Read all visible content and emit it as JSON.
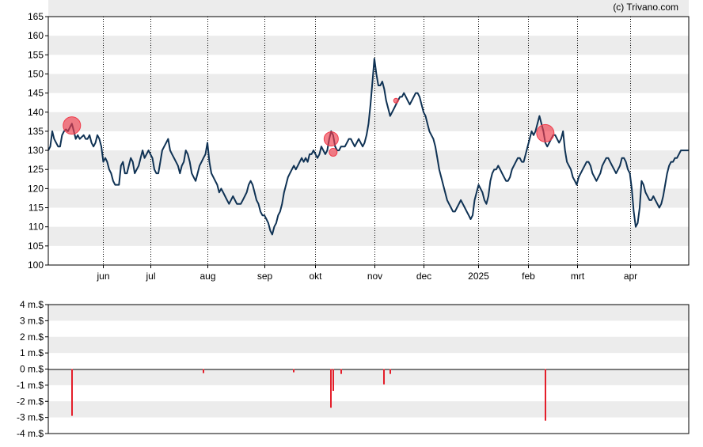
{
  "credit": "(c) Trivano.com",
  "colors": {
    "price_line": "#0f3254",
    "band": "#ececec",
    "marker": "#f03c4b",
    "insider_bar": "#e41e2a"
  },
  "chart_data": [
    {
      "type": "line",
      "name": "price",
      "ylim": [
        100,
        165
      ],
      "yticks": [
        "100",
        "105",
        "110",
        "115",
        "120",
        "125",
        "130",
        "135",
        "140",
        "145",
        "150",
        "155",
        "160",
        "165"
      ],
      "grid": "alternating horizontal bands, dotted vertical month lines",
      "x_domain": [
        0,
        326
      ],
      "month_ticks": [
        {
          "label": "jun",
          "x": 28
        },
        {
          "label": "jul",
          "x": 52
        },
        {
          "label": "aug",
          "x": 81
        },
        {
          "label": "sep",
          "x": 110
        },
        {
          "label": "okt",
          "x": 136
        },
        {
          "label": "nov",
          "x": 166
        },
        {
          "label": "dec",
          "x": 191
        },
        {
          "label": "2025",
          "x": 219
        },
        {
          "label": "feb",
          "x": 244
        },
        {
          "label": "mrt",
          "x": 269
        },
        {
          "label": "apr",
          "x": 296
        }
      ],
      "series_points": [
        [
          0,
          130
        ],
        [
          1,
          131
        ],
        [
          2,
          135
        ],
        [
          3,
          133
        ],
        [
          4,
          132
        ],
        [
          5,
          131
        ],
        [
          6,
          131
        ],
        [
          7,
          134
        ],
        [
          8,
          135
        ],
        [
          9,
          135.5
        ],
        [
          10,
          135
        ],
        [
          11,
          136
        ],
        [
          12,
          137
        ],
        [
          13,
          135
        ],
        [
          14,
          133
        ],
        [
          15,
          134
        ],
        [
          16,
          133
        ],
        [
          17,
          133.5
        ],
        [
          18,
          134
        ],
        [
          19,
          133
        ],
        [
          20,
          133
        ],
        [
          21,
          134
        ],
        [
          22,
          132
        ],
        [
          23,
          131
        ],
        [
          24,
          132
        ],
        [
          25,
          134
        ],
        [
          26,
          133
        ],
        [
          27,
          131
        ],
        [
          28,
          127
        ],
        [
          29,
          128
        ],
        [
          30,
          127
        ],
        [
          31,
          125
        ],
        [
          32,
          124
        ],
        [
          33,
          122
        ],
        [
          34,
          121
        ],
        [
          35,
          121
        ],
        [
          36,
          121
        ],
        [
          37,
          126
        ],
        [
          38,
          127
        ],
        [
          39,
          124
        ],
        [
          40,
          124
        ],
        [
          41,
          126
        ],
        [
          42,
          128
        ],
        [
          43,
          127
        ],
        [
          44,
          124
        ],
        [
          45,
          125
        ],
        [
          46,
          126
        ],
        [
          47,
          128
        ],
        [
          48,
          130
        ],
        [
          49,
          128
        ],
        [
          50,
          129
        ],
        [
          51,
          130
        ],
        [
          52,
          129
        ],
        [
          53,
          128
        ],
        [
          54,
          125
        ],
        [
          55,
          124
        ],
        [
          56,
          124
        ],
        [
          57,
          127
        ],
        [
          58,
          130
        ],
        [
          59,
          131
        ],
        [
          60,
          132
        ],
        [
          61,
          133
        ],
        [
          62,
          130
        ],
        [
          63,
          129
        ],
        [
          64,
          128
        ],
        [
          65,
          127
        ],
        [
          66,
          126
        ],
        [
          67,
          124
        ],
        [
          68,
          126
        ],
        [
          69,
          127
        ],
        [
          70,
          130
        ],
        [
          71,
          129
        ],
        [
          72,
          127
        ],
        [
          73,
          124
        ],
        [
          74,
          123
        ],
        [
          75,
          122
        ],
        [
          76,
          124
        ],
        [
          77,
          126
        ],
        [
          78,
          127
        ],
        [
          79,
          128
        ],
        [
          80,
          129
        ],
        [
          81,
          132
        ],
        [
          82,
          127
        ],
        [
          83,
          124
        ],
        [
          84,
          123
        ],
        [
          85,
          122
        ],
        [
          86,
          121
        ],
        [
          87,
          119
        ],
        [
          88,
          120
        ],
        [
          89,
          119
        ],
        [
          90,
          118
        ],
        [
          91,
          117
        ],
        [
          92,
          116
        ],
        [
          93,
          117
        ],
        [
          94,
          118
        ],
        [
          95,
          117
        ],
        [
          96,
          116
        ],
        [
          97,
          116
        ],
        [
          98,
          116
        ],
        [
          99,
          117
        ],
        [
          100,
          118
        ],
        [
          101,
          119
        ],
        [
          102,
          121
        ],
        [
          103,
          122
        ],
        [
          104,
          121
        ],
        [
          105,
          119
        ],
        [
          106,
          117
        ],
        [
          107,
          116
        ],
        [
          108,
          114
        ],
        [
          109,
          113
        ],
        [
          110,
          113
        ],
        [
          111,
          112
        ],
        [
          112,
          111
        ],
        [
          113,
          109
        ],
        [
          114,
          108
        ],
        [
          115,
          110
        ],
        [
          116,
          111
        ],
        [
          117,
          113
        ],
        [
          118,
          114
        ],
        [
          119,
          116
        ],
        [
          120,
          119
        ],
        [
          121,
          121
        ],
        [
          122,
          123
        ],
        [
          123,
          124
        ],
        [
          124,
          125
        ],
        [
          125,
          126
        ],
        [
          126,
          125
        ],
        [
          127,
          126
        ],
        [
          128,
          127
        ],
        [
          129,
          128
        ],
        [
          130,
          127
        ],
        [
          131,
          128
        ],
        [
          132,
          127
        ],
        [
          133,
          129
        ],
        [
          134,
          129
        ],
        [
          135,
          130
        ],
        [
          136,
          129
        ],
        [
          137,
          128
        ],
        [
          138,
          129
        ],
        [
          139,
          131
        ],
        [
          140,
          130
        ],
        [
          141,
          129
        ],
        [
          142,
          130
        ],
        [
          143,
          133
        ],
        [
          144,
          135
        ],
        [
          145,
          134
        ],
        [
          146,
          131
        ],
        [
          147,
          130
        ],
        [
          148,
          130
        ],
        [
          149,
          131
        ],
        [
          150,
          131
        ],
        [
          151,
          131
        ],
        [
          152,
          132
        ],
        [
          153,
          133
        ],
        [
          154,
          133
        ],
        [
          155,
          132
        ],
        [
          156,
          131
        ],
        [
          157,
          132
        ],
        [
          158,
          133
        ],
        [
          159,
          132
        ],
        [
          160,
          131
        ],
        [
          161,
          132
        ],
        [
          162,
          134
        ],
        [
          163,
          137
        ],
        [
          164,
          142
        ],
        [
          165,
          148
        ],
        [
          166,
          154
        ],
        [
          167,
          150
        ],
        [
          168,
          147
        ],
        [
          169,
          147
        ],
        [
          170,
          148
        ],
        [
          171,
          146
        ],
        [
          172,
          143
        ],
        [
          173,
          141
        ],
        [
          174,
          139
        ],
        [
          175,
          140
        ],
        [
          176,
          141
        ],
        [
          177,
          142
        ],
        [
          178,
          143
        ],
        [
          179,
          144
        ],
        [
          180,
          144
        ],
        [
          181,
          145
        ],
        [
          182,
          144
        ],
        [
          183,
          143
        ],
        [
          184,
          142
        ],
        [
          185,
          143
        ],
        [
          186,
          144
        ],
        [
          187,
          145
        ],
        [
          188,
          145
        ],
        [
          189,
          144
        ],
        [
          190,
          142
        ],
        [
          191,
          140
        ],
        [
          192,
          139
        ],
        [
          193,
          137
        ],
        [
          194,
          135
        ],
        [
          195,
          134
        ],
        [
          196,
          133
        ],
        [
          197,
          131
        ],
        [
          198,
          128
        ],
        [
          199,
          125
        ],
        [
          200,
          123
        ],
        [
          201,
          121
        ],
        [
          202,
          119
        ],
        [
          203,
          117
        ],
        [
          204,
          116
        ],
        [
          205,
          115
        ],
        [
          206,
          114
        ],
        [
          207,
          114
        ],
        [
          208,
          115
        ],
        [
          209,
          116
        ],
        [
          210,
          117
        ],
        [
          211,
          116
        ],
        [
          212,
          115
        ],
        [
          213,
          114
        ],
        [
          214,
          113
        ],
        [
          215,
          112
        ],
        [
          216,
          113
        ],
        [
          217,
          117
        ],
        [
          218,
          119
        ],
        [
          219,
          121
        ],
        [
          220,
          120
        ],
        [
          221,
          119
        ],
        [
          222,
          117
        ],
        [
          223,
          116
        ],
        [
          224,
          118
        ],
        [
          225,
          122
        ],
        [
          226,
          124
        ],
        [
          227,
          125
        ],
        [
          228,
          125
        ],
        [
          229,
          126
        ],
        [
          230,
          125
        ],
        [
          231,
          124
        ],
        [
          232,
          123
        ],
        [
          233,
          122
        ],
        [
          234,
          122
        ],
        [
          235,
          123
        ],
        [
          236,
          125
        ],
        [
          237,
          126
        ],
        [
          238,
          127
        ],
        [
          239,
          128
        ],
        [
          240,
          128
        ],
        [
          241,
          127
        ],
        [
          242,
          127
        ],
        [
          243,
          129
        ],
        [
          244,
          131
        ],
        [
          245,
          133
        ],
        [
          246,
          135
        ],
        [
          247,
          134
        ],
        [
          248,
          135
        ],
        [
          249,
          137
        ],
        [
          250,
          139
        ],
        [
          251,
          137
        ],
        [
          252,
          135
        ],
        [
          253,
          132
        ],
        [
          254,
          131
        ],
        [
          255,
          132
        ],
        [
          256,
          133
        ],
        [
          257,
          134
        ],
        [
          258,
          134
        ],
        [
          259,
          133
        ],
        [
          260,
          132
        ],
        [
          261,
          133
        ],
        [
          262,
          135
        ],
        [
          263,
          130
        ],
        [
          264,
          127
        ],
        [
          265,
          126
        ],
        [
          266,
          125
        ],
        [
          267,
          123
        ],
        [
          268,
          122
        ],
        [
          269,
          121
        ],
        [
          270,
          123
        ],
        [
          271,
          124
        ],
        [
          272,
          125
        ],
        [
          273,
          126
        ],
        [
          274,
          127
        ],
        [
          275,
          127
        ],
        [
          276,
          126
        ],
        [
          277,
          124
        ],
        [
          278,
          123
        ],
        [
          279,
          122
        ],
        [
          280,
          123
        ],
        [
          281,
          124
        ],
        [
          282,
          126
        ],
        [
          283,
          127
        ],
        [
          284,
          128
        ],
        [
          285,
          128
        ],
        [
          286,
          127
        ],
        [
          287,
          126
        ],
        [
          288,
          125
        ],
        [
          289,
          124
        ],
        [
          290,
          125
        ],
        [
          291,
          126
        ],
        [
          292,
          128
        ],
        [
          293,
          128
        ],
        [
          294,
          127
        ],
        [
          295,
          125
        ],
        [
          296,
          124
        ],
        [
          297,
          120
        ],
        [
          298,
          114
        ],
        [
          299,
          110
        ],
        [
          300,
          111
        ],
        [
          301,
          115
        ],
        [
          302,
          122
        ],
        [
          303,
          121
        ],
        [
          304,
          119
        ],
        [
          305,
          118
        ],
        [
          306,
          117
        ],
        [
          307,
          117
        ],
        [
          308,
          118
        ],
        [
          309,
          117
        ],
        [
          310,
          116
        ],
        [
          311,
          115
        ],
        [
          312,
          116
        ],
        [
          313,
          118
        ],
        [
          314,
          121
        ],
        [
          315,
          124
        ],
        [
          316,
          126
        ],
        [
          317,
          127
        ],
        [
          318,
          127
        ],
        [
          319,
          128
        ],
        [
          320,
          128
        ],
        [
          321,
          129
        ],
        [
          322,
          130
        ],
        [
          323,
          130
        ],
        [
          324,
          130
        ],
        [
          325,
          130
        ],
        [
          326,
          130
        ]
      ],
      "markers": [
        {
          "x": 12,
          "y": 136.5,
          "size": "large"
        },
        {
          "x": 144,
          "y": 133,
          "size": "medium"
        },
        {
          "x": 145,
          "y": 129.5,
          "size": "small"
        },
        {
          "x": 177,
          "y": 143,
          "size": "tiny"
        },
        {
          "x": 253,
          "y": 134.5,
          "size": "large"
        }
      ]
    },
    {
      "type": "bar",
      "name": "insider transactions",
      "ylim": [
        -4,
        4
      ],
      "yticks": [
        "4 m.$",
        "3 m.$",
        "2 m.$",
        "1 m.$",
        "0 m.$",
        "-1 m.$",
        "-2 m.$",
        "-3 m.$",
        "-4 m.$"
      ],
      "values": [
        {
          "x": 12,
          "value": -2.9
        },
        {
          "x": 79,
          "value": -0.25
        },
        {
          "x": 125,
          "value": -0.2
        },
        {
          "x": 144,
          "value": -2.4
        },
        {
          "x": 145,
          "value": -1.35
        },
        {
          "x": 149,
          "value": -0.3
        },
        {
          "x": 171,
          "value": -0.95
        },
        {
          "x": 174,
          "value": -0.3
        },
        {
          "x": 253,
          "value": -3.2
        }
      ]
    }
  ]
}
